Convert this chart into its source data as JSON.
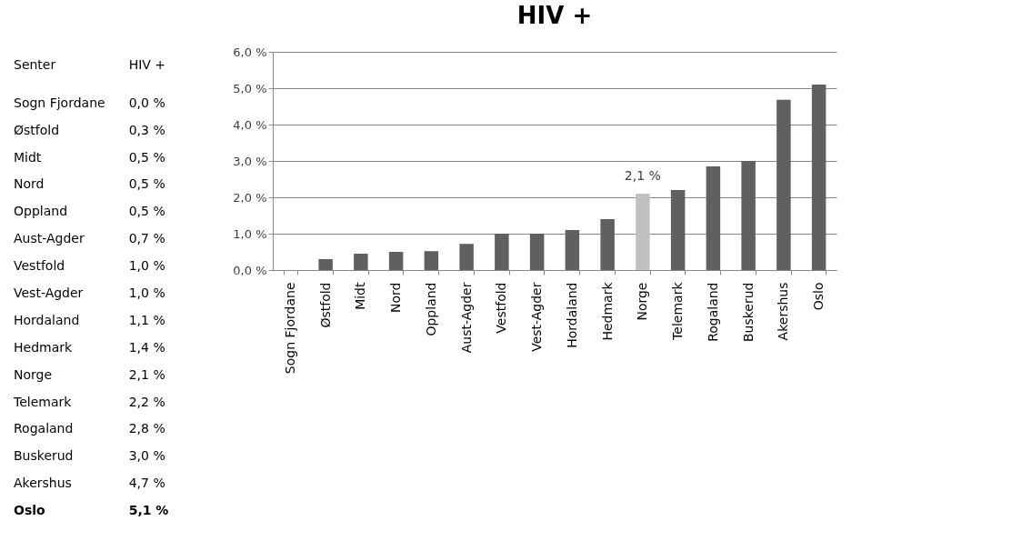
{
  "chart_data": [
    {
      "type": "other",
      "annotations": [
        "Senter",
        "HIV +",
        "Sogn Fjordane",
        "0,0 %",
        "Østfold",
        "0,3 %",
        "Midt",
        "0,5 %",
        "Nord",
        "0,5 %",
        "Oppland",
        "0,5 %",
        "Aust-Agder",
        "0,7 %",
        "Vestfold",
        "1,0 %",
        "Vest-Agder",
        "1,0 %",
        "Hordaland",
        "1,1 %",
        "Hedmark",
        "1,4 %",
        "Norge",
        "2,1 %",
        "Telemark",
        "2,2 %",
        "Rogaland",
        "2,8 %",
        "Buskerud",
        "3,0 %",
        "Akershus",
        "4,7 %",
        "Oslo",
        "5,1 %"
      ]
    },
    {
      "type": "bar",
      "title": "HIV +",
      "categories": [
        "Sogn Fjordane",
        "Østfold",
        "Midt",
        "Nord",
        "Oppland",
        "Aust-Agder",
        "Vestfold",
        "Vest-Agder",
        "Hordaland",
        "Hedmark",
        "Norge",
        "Telemark",
        "Rogaland",
        "Buskerud",
        "Akershus",
        "Oslo"
      ],
      "values": [
        0.0,
        0.3,
        0.45,
        0.5,
        0.52,
        0.72,
        1.0,
        1.0,
        1.1,
        1.4,
        2.1,
        2.2,
        2.85,
        3.0,
        4.68,
        5.1
      ],
      "colors": [
        "#606060",
        "#606060",
        "#606060",
        "#606060",
        "#606060",
        "#606060",
        "#606060",
        "#606060",
        "#606060",
        "#606060",
        "#c0c0c0",
        "#606060",
        "#606060",
        "#606060",
        "#606060",
        "#606060"
      ],
      "annotations": [
        {
          "text": "2,1 %",
          "x": "Norge",
          "y": 2.1
        }
      ],
      "ylim": [
        0,
        6
      ],
      "yticks": [
        {
          "value": 0,
          "label": "0,0 %"
        },
        {
          "value": 1,
          "label": "1,0 %"
        },
        {
          "value": 2,
          "label": "2,0 %"
        },
        {
          "value": 3,
          "label": "3,0 %"
        },
        {
          "value": 4,
          "label": "4,0 %"
        },
        {
          "value": 5,
          "label": "5,0 %"
        },
        {
          "value": 6,
          "label": "6,0 %"
        }
      ],
      "grid": "y"
    }
  ]
}
